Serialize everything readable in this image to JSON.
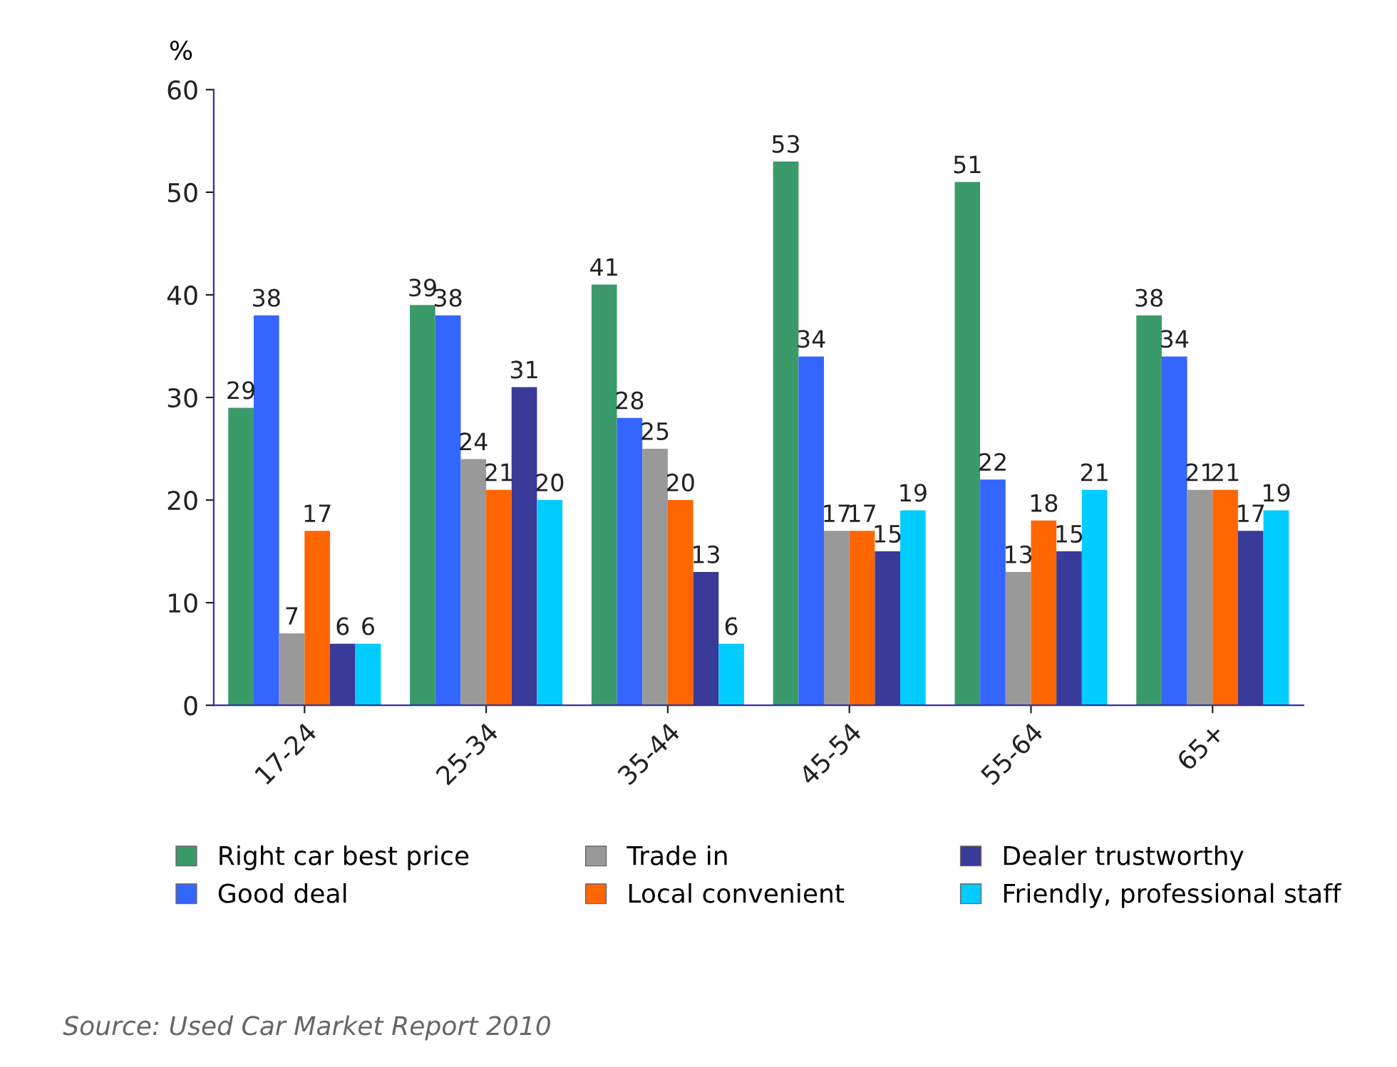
{
  "chart_data": {
    "type": "bar",
    "ylabel": "%",
    "categories": [
      "17-24",
      "25-34",
      "35-44",
      "45-54",
      "55-64",
      "65+"
    ],
    "series": [
      {
        "name": "Right car best price",
        "color": "#3a9a6a",
        "values": [
          29,
          39,
          41,
          53,
          51,
          38
        ]
      },
      {
        "name": "Good deal",
        "color": "#3366ff",
        "values": [
          38,
          38,
          28,
          34,
          22,
          34
        ]
      },
      {
        "name": "Trade in",
        "color": "#999999",
        "values": [
          7,
          24,
          25,
          17,
          13,
          21
        ]
      },
      {
        "name": "Local convenient",
        "color": "#ff6600",
        "values": [
          17,
          21,
          20,
          17,
          18,
          21
        ]
      },
      {
        "name": "Dealer trustworthy",
        "color": "#3a3a99",
        "values": [
          6,
          31,
          13,
          15,
          15,
          17
        ]
      },
      {
        "name": "Friendly, professional staff",
        "color": "#00ccff",
        "values": [
          6,
          20,
          6,
          19,
          21,
          19
        ]
      }
    ],
    "ylim": [
      0,
      60
    ],
    "yticks": [
      0,
      10,
      20,
      30,
      40,
      50,
      60
    ],
    "grid": false,
    "legend": "bottom",
    "data_labels": true,
    "annotations": [
      "Source: Used Car Market Report 2010"
    ]
  }
}
